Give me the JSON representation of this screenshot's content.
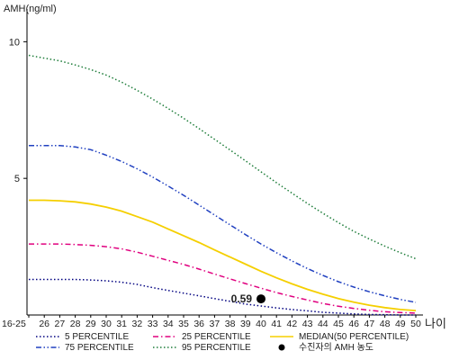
{
  "chart_data": {
    "type": "line",
    "ylabel": "AMH(ng/ml)",
    "xlabel": "나이",
    "x": [
      "16-25",
      "26",
      "27",
      "28",
      "29",
      "30",
      "31",
      "32",
      "33",
      "34",
      "35",
      "36",
      "37",
      "38",
      "39",
      "40",
      "41",
      "42",
      "43",
      "44",
      "45",
      "46",
      "47",
      "48",
      "49",
      "50"
    ],
    "ylim": [
      0,
      11
    ],
    "y_ticks": [
      5,
      10
    ],
    "series": [
      {
        "name": "5 PERCENTILE",
        "color": "#000080",
        "dash": "dot",
        "values": [
          1.3,
          1.3,
          1.3,
          1.3,
          1.28,
          1.25,
          1.2,
          1.12,
          1.0,
          0.9,
          0.8,
          0.7,
          0.6,
          0.5,
          0.4,
          0.33,
          0.26,
          0.2,
          0.15,
          0.1,
          0.07,
          0.04,
          0.02,
          0.01,
          0.0,
          0.0
        ]
      },
      {
        "name": "25 PERCENTILE",
        "color": "#e0007f",
        "dash": "dashdot",
        "values": [
          2.6,
          2.6,
          2.6,
          2.58,
          2.55,
          2.5,
          2.42,
          2.3,
          2.15,
          2.0,
          1.85,
          1.68,
          1.5,
          1.32,
          1.15,
          0.98,
          0.82,
          0.68,
          0.55,
          0.42,
          0.32,
          0.24,
          0.17,
          0.12,
          0.09,
          0.07
        ]
      },
      {
        "name": "MEDIAN(50 PERCENTILE)",
        "color": "#f5cf00",
        "dash": "solid",
        "values": [
          4.2,
          4.2,
          4.18,
          4.14,
          4.06,
          3.95,
          3.8,
          3.6,
          3.4,
          3.15,
          2.9,
          2.65,
          2.38,
          2.12,
          1.86,
          1.6,
          1.36,
          1.14,
          0.94,
          0.76,
          0.6,
          0.47,
          0.36,
          0.27,
          0.2,
          0.16
        ]
      },
      {
        "name": "75 PERCENTILE",
        "color": "#2040c0",
        "dash": "dashdotdot",
        "values": [
          6.2,
          6.2,
          6.2,
          6.15,
          6.05,
          5.85,
          5.62,
          5.35,
          5.05,
          4.72,
          4.38,
          4.02,
          3.66,
          3.3,
          2.94,
          2.6,
          2.28,
          1.98,
          1.7,
          1.45,
          1.22,
          1.02,
          0.85,
          0.7,
          0.57,
          0.46
        ]
      },
      {
        "name": "95 PERCENTILE",
        "color": "#1e7d3a",
        "dash": "dot",
        "values": [
          9.5,
          9.4,
          9.3,
          9.15,
          8.98,
          8.78,
          8.52,
          8.22,
          7.9,
          7.56,
          7.2,
          6.82,
          6.43,
          6.04,
          5.64,
          5.24,
          4.84,
          4.46,
          4.08,
          3.72,
          3.38,
          3.06,
          2.78,
          2.52,
          2.28,
          2.06
        ]
      }
    ],
    "highlight": {
      "name": "수진자의 AMH 농도",
      "x": "40",
      "y": 0.59,
      "label": "0.59",
      "color": "#000000"
    },
    "grid": false,
    "legend_placement": "bottom"
  }
}
